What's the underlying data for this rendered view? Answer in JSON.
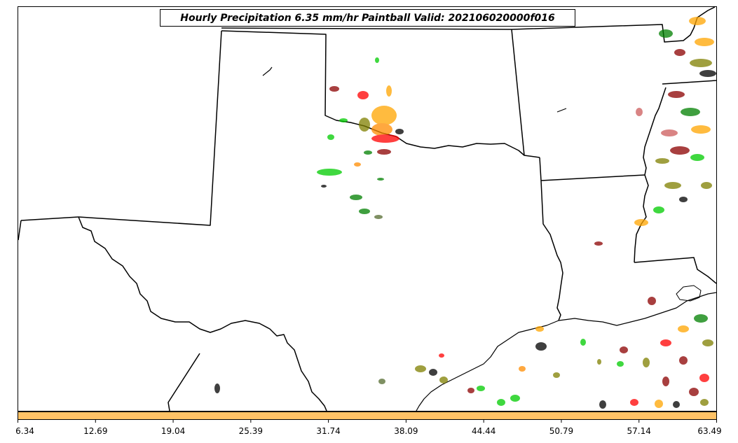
{
  "map": {
    "title": "Hourly Precipitation 6.35 mm/hr Paintball Valid: 202106020000f016",
    "colorbar": {
      "fill_color": "#FFC266",
      "ticks": [
        "6.34",
        "12.69",
        "19.04",
        "25.39",
        "31.74",
        "38.09",
        "44.44",
        "50.79",
        "57.14",
        "63.49"
      ]
    },
    "member_colors": [
      "#008000",
      "#00CC00",
      "#FF0000",
      "#8B0000",
      "#FFA500",
      "#FF8C00",
      "#808000",
      "#000000",
      "#556B2F",
      "#CD5C5C"
    ]
  }
}
